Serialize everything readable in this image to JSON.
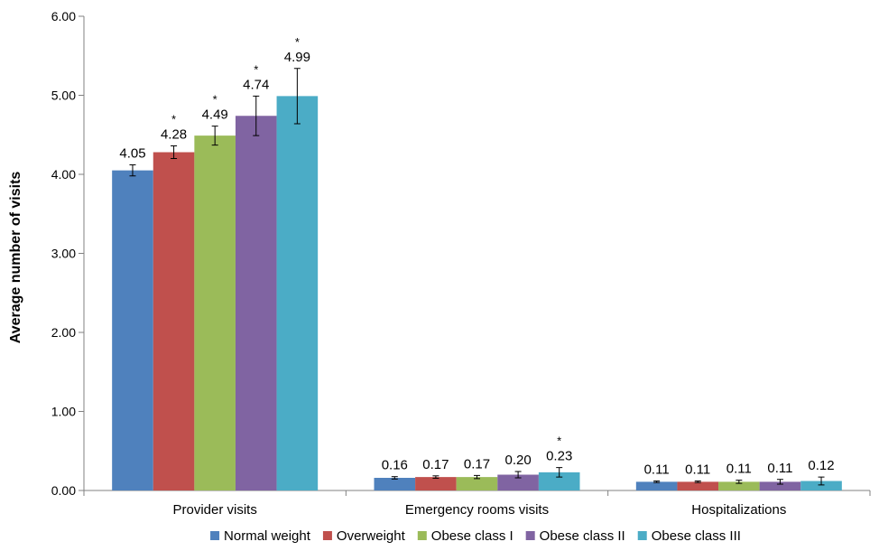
{
  "chart_data": {
    "type": "bar",
    "title": "",
    "xlabel": "",
    "ylabel": "Average number of visits",
    "ylim": [
      0,
      6
    ],
    "yticks": [
      "0.00",
      "1.00",
      "2.00",
      "3.00",
      "4.00",
      "5.00",
      "6.00"
    ],
    "grid": false,
    "legend_position": "bottom",
    "categories": [
      "Provider visits",
      "Emergency rooms visits",
      "Hospitalizations"
    ],
    "series": [
      {
        "name": "Normal weight",
        "color": "#4F81BD",
        "values": [
          4.05,
          0.16,
          0.11
        ],
        "labels": [
          "4.05",
          "0.16",
          "0.11"
        ],
        "errors": [
          0.07,
          0.015,
          0.01
        ],
        "significant": [
          false,
          false,
          false
        ]
      },
      {
        "name": "Overweight",
        "color": "#C0504D",
        "values": [
          4.28,
          0.17,
          0.11
        ],
        "labels": [
          "4.28",
          "0.17",
          "0.11"
        ],
        "errors": [
          0.08,
          0.015,
          0.01
        ],
        "significant": [
          true,
          false,
          false
        ]
      },
      {
        "name": "Obese class I",
        "color": "#9BBB59",
        "values": [
          4.49,
          0.17,
          0.11
        ],
        "labels": [
          "4.49",
          "0.17",
          "0.11"
        ],
        "errors": [
          0.12,
          0.02,
          0.02
        ],
        "significant": [
          true,
          false,
          false
        ]
      },
      {
        "name": "Obese class II",
        "color": "#8064A2",
        "values": [
          4.74,
          0.2,
          0.11
        ],
        "labels": [
          "4.74",
          "0.20",
          "0.11"
        ],
        "errors": [
          0.25,
          0.04,
          0.03
        ],
        "significant": [
          true,
          false,
          false
        ]
      },
      {
        "name": "Obese class III",
        "color": "#4BACC6",
        "values": [
          4.99,
          0.23,
          0.12
        ],
        "labels": [
          "4.99",
          "0.23",
          "0.12"
        ],
        "errors": [
          0.35,
          0.06,
          0.05
        ],
        "significant": [
          true,
          true,
          false
        ]
      }
    ],
    "significance_marker": "*"
  }
}
